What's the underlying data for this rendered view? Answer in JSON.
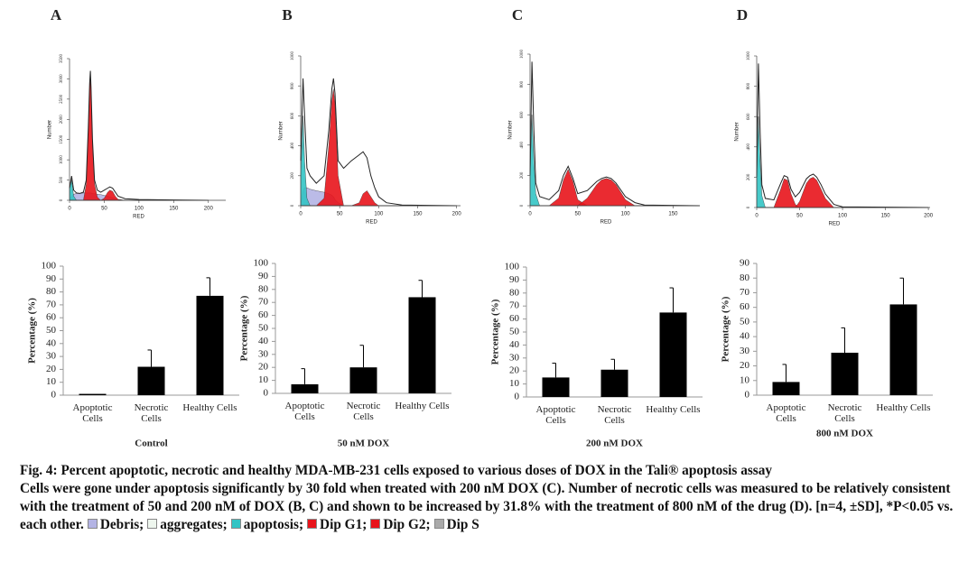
{
  "chart_data": [
    {
      "type": "histogram",
      "panel": "A",
      "xlabel": "RED",
      "ylabel": "Number",
      "xlim": [
        0,
        225
      ],
      "ylim": [
        0,
        3500
      ],
      "xticks": [
        0,
        50,
        100,
        150,
        200
      ],
      "yticks": [
        0,
        500,
        1000,
        1500,
        2000,
        2500,
        3000,
        3500
      ],
      "x": [
        0,
        3,
        6,
        10,
        15,
        20,
        24,
        27,
        29,
        30,
        31,
        33,
        36,
        40,
        45,
        50,
        55,
        58,
        62,
        66,
        70,
        80,
        100,
        150,
        200
      ],
      "series": [
        {
          "style": "area",
          "color": "#b4b4e4",
          "values": [
            0,
            100,
            150,
            170,
            170,
            180,
            180,
            180,
            180,
            180,
            180,
            170,
            160,
            150,
            140,
            120,
            100,
            80,
            60,
            40,
            20,
            0,
            0,
            0,
            0
          ]
        },
        {
          "style": "area",
          "color": "#33c4c4",
          "values": [
            300,
            500,
            100,
            0,
            0,
            0,
            0,
            0,
            0,
            0,
            0,
            0,
            0,
            0,
            0,
            0,
            0,
            0,
            0,
            0,
            0,
            0,
            0,
            0,
            0
          ]
        },
        {
          "style": "area",
          "color": "#e8141b",
          "values": [
            0,
            0,
            0,
            0,
            0,
            0,
            400,
            1700,
            2800,
            3100,
            2700,
            1400,
            400,
            80,
            0,
            0,
            0,
            0,
            0,
            0,
            0,
            0,
            0,
            0,
            0
          ]
        },
        {
          "style": "area",
          "color": "#e8141b",
          "values": [
            0,
            0,
            0,
            0,
            0,
            0,
            0,
            0,
            0,
            0,
            0,
            0,
            0,
            0,
            0,
            50,
            200,
            250,
            220,
            100,
            20,
            0,
            0,
            0,
            0
          ]
        },
        {
          "style": "line",
          "color": "#222222",
          "values": [
            300,
            600,
            250,
            180,
            170,
            200,
            500,
            1800,
            2900,
            3200,
            2800,
            1500,
            500,
            250,
            200,
            250,
            300,
            330,
            300,
            200,
            100,
            40,
            20,
            10,
            0
          ]
        }
      ]
    },
    {
      "type": "histogram",
      "panel": "B",
      "xlabel": "RED",
      "ylabel": "Number",
      "xlim": [
        0,
        205
      ],
      "ylim": [
        0,
        1000
      ],
      "xticks": [
        0,
        50,
        100,
        150,
        200
      ],
      "yticks": [
        0,
        200,
        400,
        600,
        800,
        1000
      ],
      "x": [
        0,
        3,
        5,
        8,
        12,
        20,
        30,
        36,
        40,
        42,
        44,
        48,
        55,
        65,
        75,
        80,
        85,
        90,
        95,
        100,
        110,
        130,
        200
      ],
      "series": [
        {
          "style": "area",
          "color": "#b4b4e4",
          "values": [
            0,
            100,
            120,
            120,
            110,
            100,
            90,
            80,
            70,
            60,
            40,
            20,
            0,
            0,
            0,
            0,
            0,
            0,
            0,
            0,
            0,
            0,
            0
          ]
        },
        {
          "style": "area",
          "color": "#33c4c4",
          "values": [
            200,
            600,
            300,
            50,
            0,
            0,
            0,
            0,
            0,
            0,
            0,
            0,
            0,
            0,
            0,
            0,
            0,
            0,
            0,
            0,
            0,
            0,
            0
          ]
        },
        {
          "style": "area",
          "color": "#e8141b",
          "values": [
            0,
            0,
            0,
            0,
            0,
            0,
            50,
            400,
            700,
            780,
            680,
            200,
            0,
            0,
            0,
            0,
            0,
            0,
            0,
            0,
            0,
            0,
            0
          ]
        },
        {
          "style": "area",
          "color": "#e8141b",
          "values": [
            0,
            0,
            0,
            0,
            0,
            0,
            0,
            0,
            0,
            0,
            0,
            0,
            0,
            0,
            20,
            80,
            100,
            60,
            20,
            0,
            0,
            0,
            0
          ]
        },
        {
          "style": "line",
          "color": "#222222",
          "values": [
            300,
            850,
            600,
            250,
            200,
            150,
            200,
            500,
            780,
            850,
            750,
            300,
            250,
            300,
            340,
            360,
            320,
            200,
            120,
            60,
            20,
            5,
            0
          ]
        }
      ]
    },
    {
      "type": "histogram",
      "panel": "C",
      "xlabel": "RED",
      "ylabel": "Number",
      "xlim": [
        0,
        178
      ],
      "ylim": [
        0,
        1000
      ],
      "xticks": [
        0,
        50,
        100,
        150
      ],
      "yticks": [
        0,
        200,
        400,
        600,
        800,
        1000
      ],
      "x": [
        0,
        2,
        4,
        6,
        10,
        20,
        30,
        35,
        40,
        45,
        50,
        60,
        70,
        75,
        80,
        85,
        90,
        100,
        110,
        120,
        178
      ],
      "series": [
        {
          "style": "area",
          "color": "#33c4c4",
          "values": [
            200,
            600,
            300,
            80,
            0,
            0,
            0,
            0,
            0,
            0,
            0,
            0,
            0,
            0,
            0,
            0,
            0,
            0,
            0,
            0,
            0
          ]
        },
        {
          "style": "area",
          "color": "#e8141b",
          "values": [
            0,
            0,
            0,
            0,
            0,
            0,
            50,
            170,
            240,
            160,
            40,
            0,
            0,
            0,
            0,
            0,
            0,
            0,
            0,
            0,
            0
          ]
        },
        {
          "style": "area",
          "color": "#e8141b",
          "values": [
            0,
            0,
            0,
            0,
            0,
            0,
            0,
            0,
            0,
            0,
            0,
            50,
            140,
            170,
            180,
            170,
            140,
            40,
            0,
            0,
            0
          ]
        },
        {
          "style": "line",
          "color": "#222222",
          "values": [
            200,
            950,
            500,
            150,
            60,
            40,
            100,
            200,
            260,
            180,
            80,
            100,
            160,
            180,
            190,
            180,
            150,
            60,
            20,
            5,
            0
          ]
        }
      ]
    },
    {
      "type": "histogram",
      "panel": "D",
      "xlabel": "RED",
      "ylabel": "Number",
      "xlim": [
        0,
        202
      ],
      "ylim": [
        0,
        1000
      ],
      "xticks": [
        0,
        50,
        100,
        150,
        200
      ],
      "yticks": [
        0,
        200,
        400,
        600,
        800,
        1000
      ],
      "x": [
        0,
        2,
        4,
        6,
        10,
        20,
        28,
        32,
        36,
        40,
        45,
        50,
        58,
        62,
        66,
        70,
        75,
        80,
        90,
        100,
        200
      ],
      "series": [
        {
          "style": "area",
          "color": "#33c4c4",
          "values": [
            200,
            600,
            300,
            80,
            0,
            0,
            0,
            0,
            0,
            0,
            0,
            0,
            0,
            0,
            0,
            0,
            0,
            0,
            0,
            0,
            0
          ]
        },
        {
          "style": "area",
          "color": "#e8141b",
          "values": [
            0,
            0,
            0,
            0,
            0,
            0,
            120,
            190,
            180,
            90,
            20,
            0,
            0,
            0,
            0,
            0,
            0,
            0,
            0,
            0,
            0
          ]
        },
        {
          "style": "area",
          "color": "#e8141b",
          "values": [
            0,
            0,
            0,
            0,
            0,
            0,
            0,
            0,
            0,
            0,
            0,
            40,
            160,
            190,
            200,
            180,
            120,
            60,
            0,
            0,
            0
          ]
        },
        {
          "style": "line",
          "color": "#222222",
          "values": [
            200,
            950,
            500,
            150,
            60,
            50,
            160,
            210,
            200,
            120,
            70,
            100,
            190,
            210,
            220,
            200,
            150,
            90,
            20,
            5,
            0
          ]
        }
      ]
    },
    {
      "type": "bar",
      "xlabel": "Control",
      "ylabel": "Percentage (%)",
      "color": "#000000",
      "categories": [
        "Apoptotic\nCells",
        "Necrotic\nCells",
        "Healthy Cells"
      ],
      "values": [
        1,
        22,
        77
      ],
      "errors": [
        0,
        13,
        14
      ],
      "ylim": [
        0,
        100
      ],
      "yticks": [
        0,
        10,
        20,
        30,
        40,
        50,
        60,
        70,
        80,
        90,
        100
      ]
    },
    {
      "type": "bar",
      "xlabel": "50 nM DOX",
      "ylabel": "Percentage (%)",
      "color": "#000000",
      "categories": [
        "Apoptotic\nCells",
        "Necrotic\nCells",
        "Healthy Cells"
      ],
      "values": [
        7,
        20,
        74
      ],
      "errors": [
        12,
        17,
        13
      ],
      "ylim": [
        0,
        100
      ],
      "yticks": [
        0,
        10,
        20,
        30,
        40,
        50,
        60,
        70,
        80,
        90,
        100
      ]
    },
    {
      "type": "bar",
      "xlabel": "200 nM DOX",
      "ylabel": "Percentage (%)",
      "color": "#000000",
      "categories": [
        "Apoptotic\nCells",
        "Necrotic\nCells",
        "Healthy Cells"
      ],
      "values": [
        15,
        21,
        65
      ],
      "errors": [
        11,
        8,
        19
      ],
      "ylim": [
        0,
        100
      ],
      "yticks": [
        0,
        10,
        20,
        30,
        40,
        50,
        60,
        70,
        80,
        90,
        100
      ]
    },
    {
      "type": "bar",
      "xlabel": "800 nM DOX",
      "ylabel": "Percentage (%)",
      "color": "#000000",
      "categories": [
        "Apoptotic\nCells",
        "Necrotic\nCells",
        "Healthy Cells"
      ],
      "values": [
        9,
        29,
        62
      ],
      "errors": [
        12,
        17,
        18
      ],
      "ylim": [
        0,
        90
      ],
      "yticks": [
        0,
        10,
        20,
        30,
        40,
        50,
        60,
        70,
        80,
        90
      ]
    }
  ],
  "caption": {
    "title": "Fig. 4: Percent apoptotic, necrotic and healthy MDA-MB-231 cells exposed to various doses of DOX in the Tali® apoptosis assay",
    "body": "Cells were gone under apoptosis significantly by 30 fold when treated with 200 nM DOX (C). Number of necrotic cells was measured to be relatively consistent with the treatment of 50 and 200 nM of DOX (B, C) and shown to be increased by 31.8% with the treatment of 800 nM of the drug (D). [n=4, ±SD], *P<0.05 vs. each other.",
    "legend": [
      {
        "label": "Debris;",
        "color": "#b4b4e4"
      },
      {
        "label": "aggregates;",
        "color": "#eef6ee"
      },
      {
        "label": "apoptosis;",
        "color": "#33c4c4"
      },
      {
        "label": "Dip G1;",
        "color": "#e8141b"
      },
      {
        "label": "Dip G2;",
        "color": "#e8141b"
      },
      {
        "label": "Dip S",
        "color": "#aaaaaa"
      }
    ]
  }
}
